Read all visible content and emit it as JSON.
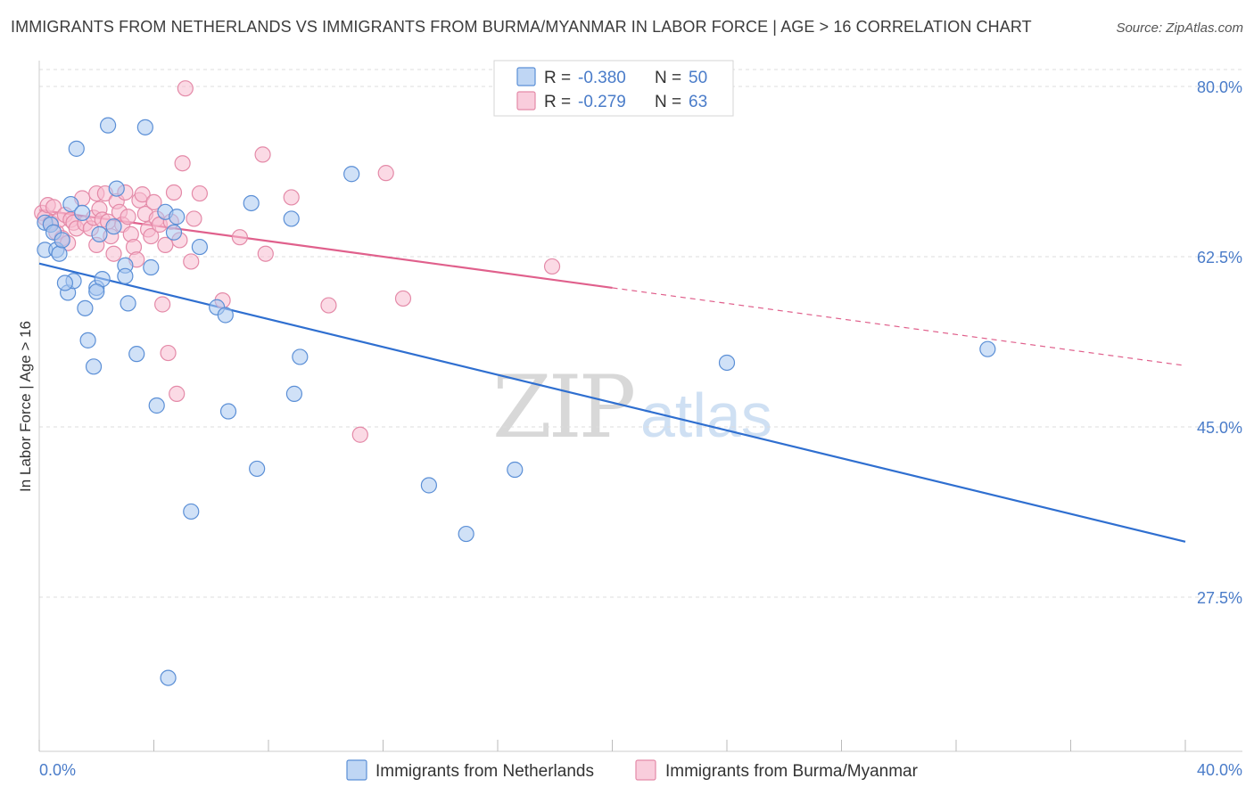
{
  "title": "IMMIGRANTS FROM NETHERLANDS VS IMMIGRANTS FROM BURMA/MYANMAR IN LABOR FORCE | AGE > 16 CORRELATION CHART",
  "source": "Source: ZipAtlas.com",
  "watermark": {
    "zip": "ZIP",
    "atlas": "atlas"
  },
  "colors": {
    "netherlands_fill": "#a9c8f0",
    "netherlands_stroke": "#5b8fd6",
    "netherlands_line": "#2f6fd0",
    "burma_fill": "#f7bcd0",
    "burma_stroke": "#e48aa8",
    "burma_line": "#e0608c",
    "tick_text": "#4a7cc9",
    "grid": "#dcdcdc"
  },
  "legend": {
    "rows": [
      {
        "r_label": "R = ",
        "r_value": "-0.380",
        "n_label": "N = ",
        "n_value": "50"
      },
      {
        "r_label": "R = ",
        "r_value": "-0.279",
        "n_label": "N = ",
        "n_value": "63"
      }
    ]
  },
  "bottom_legend": [
    "Immigrants from Netherlands",
    "Immigrants from Burma/Myanmar"
  ],
  "chart_data": {
    "type": "scatter",
    "title": "IMMIGRANTS FROM NETHERLANDS VS IMMIGRANTS FROM BURMA/MYANMAR IN LABOR FORCE | AGE > 16 CORRELATION CHART",
    "xlabel": "",
    "ylabel": "In Labor Force | Age > 16",
    "xlim": [
      0,
      40
    ],
    "ylim": [
      11,
      83
    ],
    "x_tick_labels": [
      "0.0%",
      "40.0%"
    ],
    "y_ticks": [
      27.5,
      45.0,
      62.5,
      80.0
    ],
    "y_tick_labels": [
      "27.5%",
      "45.0%",
      "62.5%",
      "80.0%"
    ],
    "grid": true,
    "legend_position": "top-center",
    "series": [
      {
        "name": "Immigrants from Netherlands",
        "r": -0.38,
        "n": 50,
        "trend": {
          "x": [
            0,
            40
          ],
          "y": [
            61.8,
            33.2
          ]
        },
        "points": [
          [
            0.2,
            66.0
          ],
          [
            0.2,
            63.2
          ],
          [
            0.4,
            65.8
          ],
          [
            0.5,
            65.0
          ],
          [
            0.6,
            63.2
          ],
          [
            0.7,
            62.8
          ],
          [
            0.8,
            64.2
          ],
          [
            1.0,
            58.8
          ],
          [
            1.1,
            67.9
          ],
          [
            1.2,
            60.0
          ],
          [
            1.3,
            73.6
          ],
          [
            1.5,
            67.0
          ],
          [
            1.6,
            57.2
          ],
          [
            1.7,
            53.9
          ],
          [
            1.9,
            51.2
          ],
          [
            2.0,
            59.3
          ],
          [
            2.1,
            64.8
          ],
          [
            2.2,
            60.2
          ],
          [
            2.4,
            76.0
          ],
          [
            2.6,
            65.6
          ],
          [
            2.7,
            69.5
          ],
          [
            3.0,
            61.6
          ],
          [
            3.0,
            60.5
          ],
          [
            3.1,
            57.7
          ],
          [
            3.4,
            52.5
          ],
          [
            3.7,
            75.8
          ],
          [
            3.9,
            61.4
          ],
          [
            4.1,
            47.2
          ],
          [
            4.4,
            67.1
          ],
          [
            4.5,
            19.2
          ],
          [
            4.7,
            65.0
          ],
          [
            4.8,
            66.6
          ],
          [
            5.3,
            36.3
          ],
          [
            5.6,
            63.5
          ],
          [
            6.2,
            57.3
          ],
          [
            6.5,
            56.5
          ],
          [
            6.6,
            46.6
          ],
          [
            7.4,
            68.0
          ],
          [
            7.6,
            40.7
          ],
          [
            8.8,
            66.4
          ],
          [
            8.9,
            48.4
          ],
          [
            9.1,
            52.2
          ],
          [
            10.9,
            71.0
          ],
          [
            13.6,
            39.0
          ],
          [
            14.9,
            34.0
          ],
          [
            16.6,
            40.6
          ],
          [
            24.0,
            51.6
          ],
          [
            33.1,
            53.0
          ],
          [
            0.9,
            59.8
          ],
          [
            2.0,
            58.9
          ]
        ]
      },
      {
        "name": "Immigrants from Burma/Myanmar",
        "r": -0.279,
        "n": 63,
        "trend": {
          "x": [
            0,
            20
          ],
          "y": [
            67.3,
            59.3
          ]
        },
        "trend_dashed": {
          "x": [
            20,
            40
          ],
          "y": [
            59.3,
            51.3
          ]
        },
        "points": [
          [
            0.1,
            67.0
          ],
          [
            0.2,
            66.5
          ],
          [
            0.3,
            67.8
          ],
          [
            0.4,
            66.0
          ],
          [
            0.5,
            67.6
          ],
          [
            0.6,
            65.0
          ],
          [
            0.7,
            66.3
          ],
          [
            0.8,
            64.4
          ],
          [
            0.9,
            66.8
          ],
          [
            1.0,
            63.9
          ],
          [
            1.1,
            66.3
          ],
          [
            1.2,
            66.0
          ],
          [
            1.3,
            65.4
          ],
          [
            1.5,
            68.5
          ],
          [
            1.6,
            65.9
          ],
          [
            1.8,
            65.4
          ],
          [
            1.9,
            66.5
          ],
          [
            2.0,
            63.7
          ],
          [
            2.0,
            69.0
          ],
          [
            2.1,
            67.4
          ],
          [
            2.2,
            66.3
          ],
          [
            2.3,
            69.0
          ],
          [
            2.4,
            66.1
          ],
          [
            2.5,
            64.6
          ],
          [
            2.6,
            62.8
          ],
          [
            2.7,
            68.2
          ],
          [
            2.8,
            67.1
          ],
          [
            2.9,
            65.8
          ],
          [
            3.0,
            69.1
          ],
          [
            3.1,
            66.6
          ],
          [
            3.2,
            64.8
          ],
          [
            3.3,
            63.5
          ],
          [
            3.4,
            62.2
          ],
          [
            3.5,
            68.3
          ],
          [
            3.6,
            68.9
          ],
          [
            3.7,
            66.9
          ],
          [
            3.8,
            65.3
          ],
          [
            3.9,
            64.6
          ],
          [
            4.0,
            68.1
          ],
          [
            4.1,
            66.4
          ],
          [
            4.2,
            65.8
          ],
          [
            4.3,
            57.6
          ],
          [
            4.4,
            63.7
          ],
          [
            4.5,
            52.6
          ],
          [
            4.6,
            66.1
          ],
          [
            4.7,
            69.1
          ],
          [
            4.8,
            48.4
          ],
          [
            4.9,
            64.2
          ],
          [
            5.0,
            72.1
          ],
          [
            5.1,
            79.8
          ],
          [
            5.3,
            62.0
          ],
          [
            5.4,
            66.4
          ],
          [
            5.6,
            69.0
          ],
          [
            6.4,
            58.0
          ],
          [
            7.0,
            64.5
          ],
          [
            7.9,
            62.8
          ],
          [
            7.8,
            73.0
          ],
          [
            8.8,
            68.6
          ],
          [
            10.1,
            57.5
          ],
          [
            11.2,
            44.2
          ],
          [
            12.1,
            71.1
          ],
          [
            12.7,
            58.2
          ],
          [
            17.9,
            61.5
          ]
        ]
      }
    ]
  }
}
